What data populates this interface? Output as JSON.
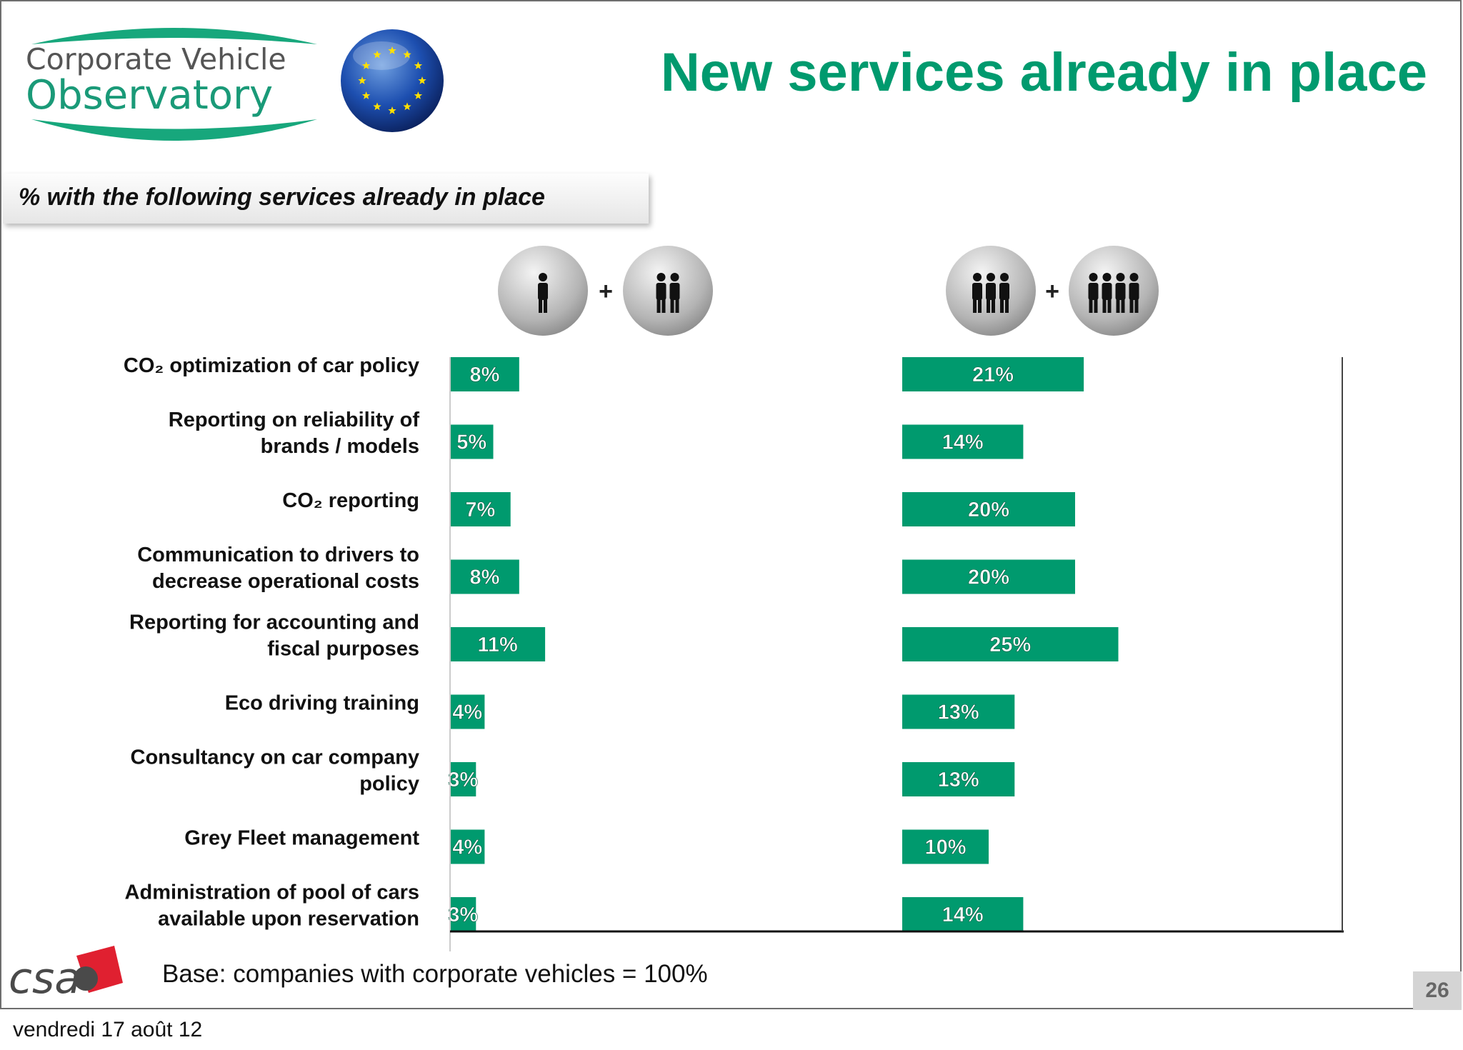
{
  "logo": {
    "line1": "Corporate Vehicle",
    "line2": "Observatory"
  },
  "header": {
    "title": "New services already in place",
    "subtitle": "% with the following services already in place"
  },
  "colors": {
    "accent": "#009a6e",
    "bar": "#009a6e",
    "text": "#111111"
  },
  "icons": {
    "group_left": [
      "person-one-icon",
      "person-two-icon"
    ],
    "group_right": [
      "person-three-icon",
      "person-four-icon"
    ],
    "plus": "+"
  },
  "chart_data": {
    "type": "bar",
    "orientation": "horizontal",
    "categories": [
      [
        "CO₂ optimization of car policy"
      ],
      [
        "Reporting on reliability of",
        "brands / models"
      ],
      [
        "CO₂ reporting"
      ],
      [
        "Communication to drivers to",
        "decrease operational costs"
      ],
      [
        "Reporting for accounting and",
        "fiscal purposes"
      ],
      [
        "Eco driving training"
      ],
      [
        "Consultancy on car company",
        "policy"
      ],
      [
        "Grey Fleet management"
      ],
      [
        "Administration of pool of cars",
        "available upon reservation"
      ]
    ],
    "series": [
      {
        "values": [
          8,
          5,
          7,
          8,
          11,
          4,
          3,
          4,
          3
        ],
        "labels": [
          "8%",
          "5%",
          "7%",
          "8%",
          "11%",
          "4%",
          "3%",
          "4%",
          "3%"
        ]
      },
      {
        "values": [
          21,
          14,
          20,
          20,
          25,
          13,
          13,
          10,
          14
        ],
        "labels": [
          "21%",
          "14%",
          "20%",
          "20%",
          "25%",
          "13%",
          "13%",
          "10%",
          "14%"
        ]
      }
    ],
    "unit": "%",
    "grid": false,
    "legend": "icons above panels"
  },
  "footer": {
    "base": "Base: companies with corporate vehicles = 100%",
    "company_logo": "csa",
    "page_number": "26",
    "date": "vendredi 17 août 12"
  }
}
